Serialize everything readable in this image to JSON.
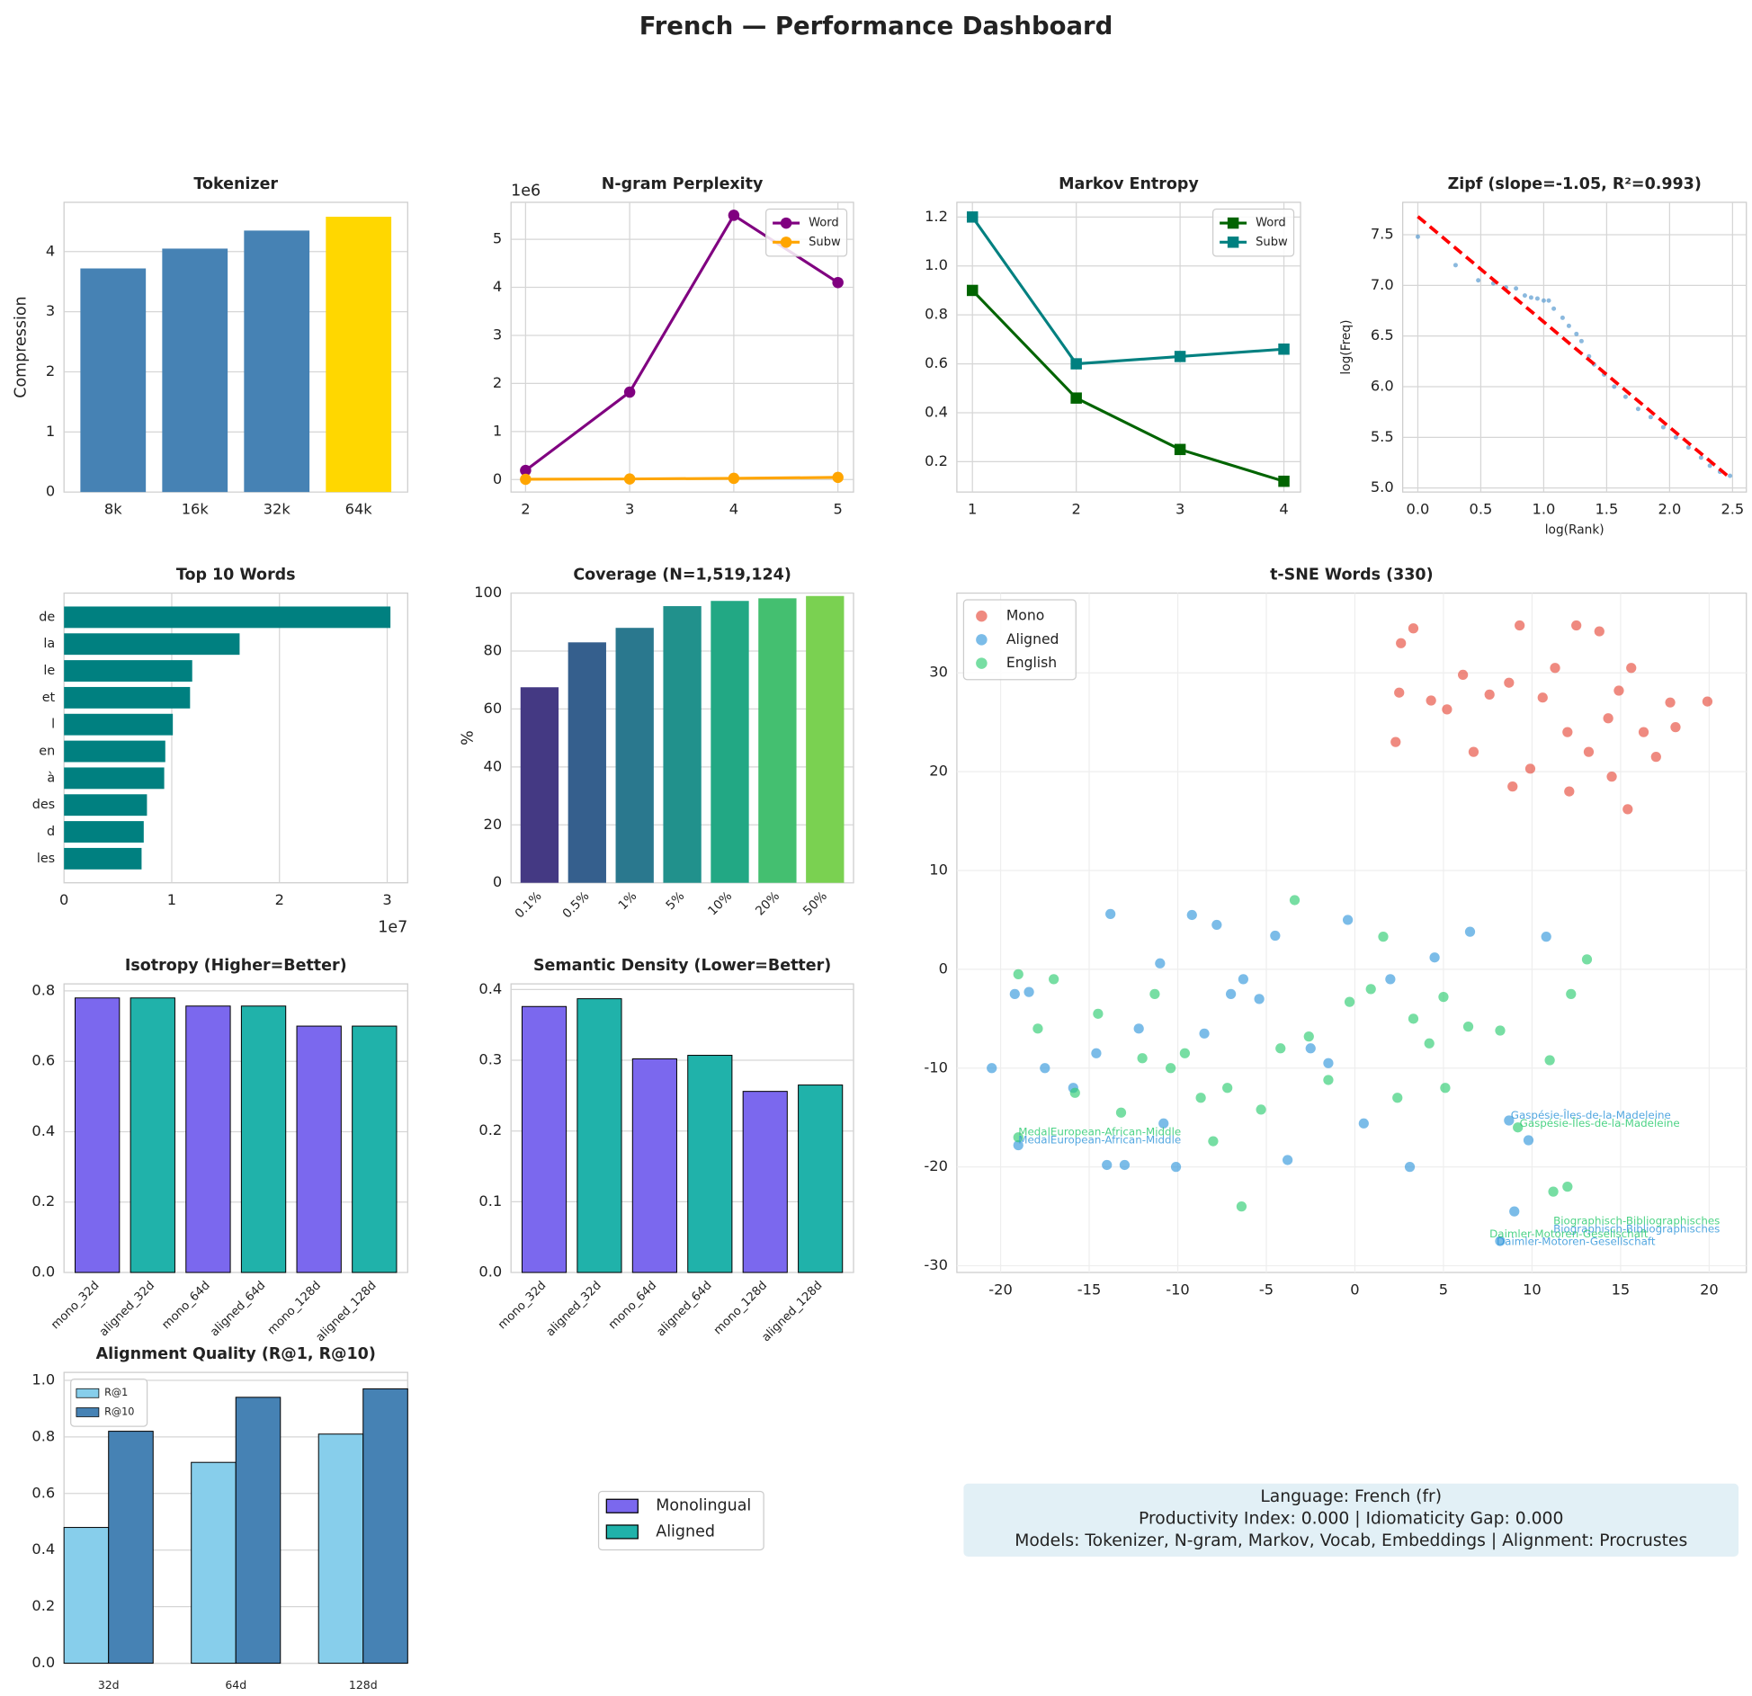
{
  "title": "French — Performance Dashboard",
  "chart_data": [
    {
      "type": "bar",
      "title": "Tokenizer",
      "ylabel": "Compression",
      "categories": [
        "8k",
        "16k",
        "32k",
        "64k"
      ],
      "values": [
        3.72,
        4.05,
        4.35,
        4.58
      ],
      "colors": [
        "#4682b4",
        "#4682b4",
        "#4682b4",
        "#ffd700"
      ],
      "ylim": [
        0,
        4.82
      ],
      "yticks": [
        0,
        1,
        2,
        3,
        4
      ],
      "grid": true
    },
    {
      "type": "line",
      "title": "N-gram Perplexity",
      "y_offset_label": "1e6",
      "x": [
        2,
        3,
        4,
        5
      ],
      "series": [
        {
          "name": "Word",
          "color": "#800080",
          "marker": "o",
          "values": [
            190000,
            1820000,
            5500000,
            4100000
          ]
        },
        {
          "name": "Subw",
          "color": "#ffa500",
          "marker": "o",
          "values": [
            5000,
            12000,
            25000,
            45000
          ]
        }
      ],
      "xlim": [
        1.86,
        5.15
      ],
      "xticks": [
        2,
        3,
        4,
        5
      ],
      "ylim": [
        -260000,
        5770000
      ],
      "yticks": [
        0,
        {
          "value": 1000000,
          "label": "1"
        },
        {
          "value": 2000000,
          "label": "2"
        },
        {
          "value": 3000000,
          "label": "3"
        },
        {
          "value": 4000000,
          "label": "4"
        },
        {
          "value": 5000000,
          "label": "5"
        }
      ],
      "grid": true,
      "legend": "upper right"
    },
    {
      "type": "line",
      "title": "Markov Entropy",
      "x": [
        1,
        2,
        3,
        4
      ],
      "series": [
        {
          "name": "Word",
          "color": "#006400",
          "marker": "s",
          "values": [
            0.9,
            0.46,
            0.25,
            0.12
          ]
        },
        {
          "name": "Subw",
          "color": "#008080",
          "marker": "s",
          "values": [
            1.2,
            0.6,
            0.63,
            0.66
          ]
        }
      ],
      "xlim": [
        0.85,
        4.16
      ],
      "xticks": [
        1,
        2,
        3,
        4
      ],
      "ylim": [
        0.076,
        1.26
      ],
      "yticks": [
        0.2,
        0.4,
        0.6,
        0.8,
        {
          "value": 1,
          "label": "1.0"
        },
        1.2
      ],
      "grid": true,
      "legend": "upper right"
    },
    {
      "type": "scatter",
      "title": "Zipf (slope=-1.05, R²=0.993)",
      "xlabel": "log(Rank)",
      "ylabel": "log(Freq)",
      "points": {
        "color": "#5a9bd0",
        "x": [
          0,
          0.3,
          0.48,
          0.6,
          0.7,
          0.78,
          0.85,
          0.9,
          0.95,
          1.0,
          1.04,
          1.08,
          1.15,
          1.2,
          1.26,
          1.3,
          1.36,
          1.4,
          1.48,
          1.56,
          1.65,
          1.75,
          1.85,
          1.95,
          2.05,
          2.15,
          2.25,
          2.32,
          2.4,
          2.48
        ],
        "y": [
          7.48,
          7.2,
          7.05,
          7.02,
          6.98,
          6.97,
          6.9,
          6.88,
          6.87,
          6.85,
          6.85,
          6.77,
          6.68,
          6.6,
          6.52,
          6.45,
          6.3,
          6.22,
          6.12,
          6.0,
          5.9,
          5.78,
          5.7,
          5.6,
          5.5,
          5.4,
          5.3,
          5.22,
          5.16,
          5.12
        ]
      },
      "fit": {
        "color": "#ff0000",
        "x": [
          0,
          2.48
        ],
        "y": [
          7.68,
          5.1
        ]
      },
      "xlim": [
        -0.12,
        2.61
      ],
      "xticks": [
        {
          "value": 0,
          "label": "0.0"
        },
        0.5,
        {
          "value": 1,
          "label": "1.0"
        },
        1.5,
        {
          "value": 2,
          "label": "2.0"
        },
        2.5
      ],
      "ylim": [
        4.96,
        7.82
      ],
      "yticks": [
        {
          "value": 5,
          "label": "5.0"
        },
        5.5,
        {
          "value": 6,
          "label": "6.0"
        },
        6.5,
        {
          "value": 7,
          "label": "7.0"
        },
        7.5
      ],
      "grid": true
    },
    {
      "type": "barh",
      "title": "Top 10 Words",
      "x_offset_label": "1e7",
      "categories": [
        "de",
        "la",
        "le",
        "et",
        "l",
        "en",
        "à",
        "des",
        "d",
        "les"
      ],
      "values": [
        30300000,
        16300000,
        11900000,
        11700000,
        10100000,
        9400000,
        9300000,
        7700000,
        7400000,
        7200000
      ],
      "color": "#008080",
      "xlim": [
        0,
        31900000
      ],
      "xticks": [
        0,
        {
          "value": 10000000,
          "label": "1"
        },
        {
          "value": 20000000,
          "label": "2"
        },
        {
          "value": 30000000,
          "label": "3"
        }
      ],
      "grid": true
    },
    {
      "type": "bar",
      "title": "Coverage (N=1,519,124)",
      "ylabel": "%",
      "categories": [
        "0.1%",
        "0.5%",
        "1%",
        "5%",
        "10%",
        "20%",
        "50%"
      ],
      "values": [
        67.5,
        83,
        88,
        95.5,
        97.3,
        98.2,
        99
      ],
      "colors": [
        "#443983",
        "#355f8d",
        "#2a788e",
        "#21918c",
        "#22a884",
        "#44bf70",
        "#7ad151"
      ],
      "ylim": [
        0,
        100
      ],
      "yticks": [
        0,
        20,
        40,
        60,
        80,
        100
      ],
      "xtick_rotation": 45,
      "grid": true
    },
    {
      "type": "scatter",
      "title": "t-SNE Words (330)",
      "legend": "upper left",
      "series": [
        {
          "name": "Mono",
          "color": "#e74c3c",
          "x": [
            3.3,
            2.6,
            2.5,
            4.3,
            5.2,
            6.1,
            6.7,
            7.6,
            8.7,
            9.3,
            9.9,
            10.6,
            11.3,
            12.0,
            12.5,
            13.2,
            13.8,
            14.3,
            14.9,
            15.6,
            16.3,
            17.0,
            17.8,
            18.1,
            19.9,
            2.3,
            8.9,
            12.1,
            14.5,
            15.4
          ],
          "y": [
            34.5,
            33.0,
            28.0,
            27.2,
            26.3,
            29.8,
            22.0,
            27.8,
            29.0,
            34.8,
            20.3,
            27.5,
            30.5,
            24.0,
            34.8,
            22.0,
            34.2,
            25.4,
            28.2,
            30.5,
            24.0,
            21.5,
            27.0,
            24.5,
            27.1,
            23.0,
            18.5,
            18.0,
            19.5,
            16.2
          ]
        },
        {
          "name": "Aligned",
          "color": "#3498db",
          "x": [
            -20.5,
            -19.2,
            -18.4,
            -17.5,
            -15.9,
            -14.6,
            -13.8,
            -13.0,
            -12.2,
            -11.0,
            -10.1,
            -9.2,
            -8.5,
            -7.8,
            -7.0,
            -6.3,
            -5.4,
            -4.5,
            -3.8,
            -2.5,
            -1.5,
            -0.4,
            0.5,
            2.0,
            3.1,
            4.5,
            6.5,
            -14.0,
            -10.8,
            9.8,
            9.0,
            10.8,
            8.2,
            8.7,
            -19.0
          ],
          "y": [
            -10.0,
            -2.5,
            -2.3,
            -10.0,
            -12.0,
            -8.5,
            5.6,
            -19.8,
            -6.0,
            0.6,
            -20.0,
            5.5,
            -6.5,
            4.5,
            -2.5,
            -1.0,
            -3.0,
            3.4,
            -19.3,
            -8.0,
            -9.5,
            5.0,
            -15.6,
            -1.0,
            -20.0,
            1.2,
            3.8,
            -19.8,
            -15.6,
            -17.3,
            -24.5,
            3.3,
            -27.5,
            -15.3,
            -17.8
          ]
        },
        {
          "name": "English",
          "color": "#2ecc71",
          "x": [
            -19.0,
            -17.9,
            -17.0,
            -15.8,
            -14.5,
            -13.2,
            -12.0,
            -11.3,
            -10.4,
            -9.6,
            -8.7,
            -8.0,
            -7.2,
            -6.4,
            -5.3,
            -4.2,
            -3.4,
            -2.6,
            -1.5,
            -0.3,
            0.9,
            1.6,
            2.4,
            3.3,
            4.2,
            5.1,
            6.4,
            8.2,
            11.0,
            13.1,
            5.0,
            12.2,
            9.2,
            11.2,
            12.0,
            -19.0
          ],
          "y": [
            -0.5,
            -6.0,
            -1.0,
            -12.5,
            -4.5,
            -14.5,
            -9.0,
            -2.5,
            -10.0,
            -8.5,
            -13.0,
            -17.4,
            -12.0,
            -24.0,
            -14.2,
            -8.0,
            7.0,
            -6.8,
            -11.2,
            -3.3,
            -2.0,
            3.3,
            -13.0,
            -5.0,
            -7.5,
            -12.0,
            -5.8,
            -6.2,
            -9.2,
            1.0,
            -2.8,
            -2.5,
            -16.0,
            -22.5,
            -22.0,
            -17.0
          ]
        }
      ],
      "annotations": [
        {
          "text": "Gaspésie-Îles-de-la-Madeleine",
          "x": 8.8,
          "y": -14.8,
          "color": "#3498db"
        },
        {
          "text": "Gaspésie-Îles-de-la-Madeleine",
          "x": 9.3,
          "y": -15.6,
          "color": "#2ecc71"
        },
        {
          "text": "MedalEuropean-African-Middle",
          "x": -19,
          "y": -16.5,
          "color": "#2ecc71"
        },
        {
          "text": "MedalEuropean-African-Middle",
          "x": -19,
          "y": -17.3,
          "color": "#3498db"
        },
        {
          "text": "Biographisch-Bibliographisches",
          "x": 11.2,
          "y": -25.5,
          "color": "#2ecc71"
        },
        {
          "text": "Biographisch-Bibliographisches",
          "x": 11.2,
          "y": -26.3,
          "color": "#3498db"
        },
        {
          "text": "Daimler-Motoren-Gesellschaft",
          "x": 7.6,
          "y": -26.8,
          "color": "#2ecc71"
        },
        {
          "text": "Daimler-Motoren-Gesellschaft",
          "x": 8.0,
          "y": -27.6,
          "color": "#3498db"
        }
      ],
      "xlim": [
        -22.47,
        22.1
      ],
      "xticks": [
        -20,
        -15,
        -10,
        -5,
        0,
        5,
        10,
        15,
        20
      ],
      "ylim": [
        -30.68,
        38.07
      ],
      "yticks": [
        -30,
        -20,
        -10,
        0,
        10,
        20,
        30
      ],
      "grid": true
    },
    {
      "type": "bar",
      "title": "Isotropy (Higher=Better)",
      "categories": [
        "mono_32d",
        "aligned_32d",
        "mono_64d",
        "aligned_64d",
        "mono_128d",
        "aligned_128d"
      ],
      "values": [
        0.78,
        0.78,
        0.757,
        0.757,
        0.7,
        0.7
      ],
      "colors": [
        "#7b68ee",
        "#20b2aa",
        "#7b68ee",
        "#20b2aa",
        "#7b68ee",
        "#20b2aa"
      ],
      "edgecolor": "#000000",
      "ylim": [
        0,
        0.82
      ],
      "yticks": [
        {
          "value": 0,
          "label": "0.0"
        },
        0.2,
        0.4,
        0.6,
        0.8
      ],
      "xtick_rotation": 45,
      "grid": true
    },
    {
      "type": "bar",
      "title": "Semantic Density (Lower=Better)",
      "categories": [
        "mono_32d",
        "aligned_32d",
        "mono_64d",
        "aligned_64d",
        "mono_128d",
        "aligned_128d"
      ],
      "values": [
        0.376,
        0.387,
        0.302,
        0.307,
        0.256,
        0.265
      ],
      "colors": [
        "#7b68ee",
        "#20b2aa",
        "#7b68ee",
        "#20b2aa",
        "#7b68ee",
        "#20b2aa"
      ],
      "edgecolor": "#000000",
      "ylim": [
        0,
        0.408
      ],
      "yticks": [
        {
          "value": 0,
          "label": "0.0"
        },
        0.1,
        0.2,
        0.3,
        0.4
      ],
      "xtick_rotation": 45,
      "grid": true
    },
    {
      "type": "bar",
      "title": "Alignment Quality (R@1, R@10)",
      "categories": [
        "32d",
        "64d",
        "128d"
      ],
      "series": [
        {
          "name": "R@1",
          "color": "#87ceeb",
          "values": [
            0.48,
            0.71,
            0.81
          ]
        },
        {
          "name": "R@10",
          "color": "#4682b4",
          "values": [
            0.82,
            0.94,
            0.97
          ]
        }
      ],
      "edgecolor": "#000000",
      "ylim": [
        0,
        1.028
      ],
      "yticks": [
        {
          "value": 0,
          "label": "0.0"
        },
        0.2,
        0.4,
        0.6,
        0.8,
        {
          "value": 1,
          "label": "1.0"
        }
      ],
      "grid": true,
      "legend": "upper left"
    }
  ],
  "shared_legend": [
    {
      "name": "Monolingual",
      "color": "#7b68ee"
    },
    {
      "name": "Aligned",
      "color": "#20b2aa"
    }
  ],
  "info_box": {
    "lines": [
      "Language: French (fr)",
      "Productivity Index: 0.000  |  Idiomaticity Gap: 0.000",
      "Models: Tokenizer, N-gram, Markov, Vocab, Embeddings  |  Alignment: Procrustes"
    ]
  }
}
